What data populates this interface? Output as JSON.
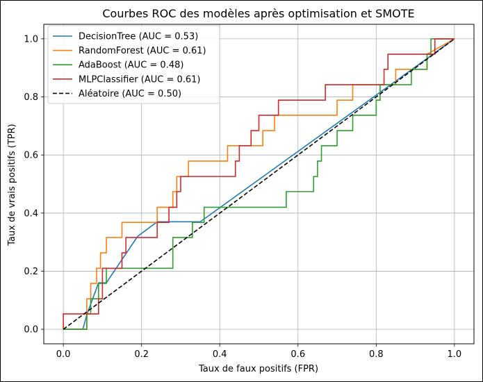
{
  "chart_data": {
    "type": "line",
    "title": "Courbes ROC des modèles après optimisation et SMOTE",
    "xlabel": "Taux de faux positifs (FPR)",
    "ylabel": "Taux de vrais positifs (TPR)",
    "xlim": [
      -0.05,
      1.05
    ],
    "ylim": [
      -0.05,
      1.05
    ],
    "xticks": [
      "0.0",
      "0.2",
      "0.4",
      "0.6",
      "0.8",
      "1.0"
    ],
    "yticks": [
      "0.0",
      "0.2",
      "0.4",
      "0.6",
      "0.8",
      "1.0"
    ],
    "grid": true,
    "legend_position": "top-left",
    "series": [
      {
        "name": "DecisionTree (AUC = 0.53)",
        "color": "#1f77b4",
        "dash": "solid",
        "x": [
          0.0,
          0.05,
          0.06,
          0.09,
          0.11,
          0.19,
          0.24,
          0.35,
          1.0
        ],
        "y": [
          0.0,
          0.0,
          0.05,
          0.16,
          0.16,
          0.32,
          0.37,
          0.37,
          1.0
        ]
      },
      {
        "name": "RandomForest (AUC = 0.61)",
        "color": "#ff7f0e",
        "dash": "solid",
        "x": [
          0.0,
          0.06,
          0.06,
          0.07,
          0.07,
          0.085,
          0.085,
          0.095,
          0.095,
          0.11,
          0.11,
          0.15,
          0.15,
          0.24,
          0.24,
          0.28,
          0.28,
          0.29,
          0.29,
          0.32,
          0.32,
          0.42,
          0.42,
          0.51,
          0.51,
          0.54,
          0.54,
          0.7,
          0.7,
          0.74,
          0.74,
          0.85,
          0.85,
          0.93,
          0.93,
          1.0
        ],
        "y": [
          0.0,
          0.0,
          0.105,
          0.105,
          0.158,
          0.158,
          0.21,
          0.21,
          0.263,
          0.263,
          0.316,
          0.316,
          0.368,
          0.368,
          0.42,
          0.42,
          0.474,
          0.474,
          0.526,
          0.526,
          0.579,
          0.579,
          0.632,
          0.632,
          0.684,
          0.684,
          0.737,
          0.737,
          0.789,
          0.789,
          0.842,
          0.842,
          0.895,
          0.895,
          0.947,
          1.0
        ]
      },
      {
        "name": "AdaBoost (AUC = 0.48)",
        "color": "#2ca02c",
        "dash": "solid",
        "x": [
          0.0,
          0.06,
          0.06,
          0.07,
          0.07,
          0.09,
          0.09,
          0.11,
          0.11,
          0.28,
          0.28,
          0.33,
          0.33,
          0.36,
          0.36,
          0.57,
          0.57,
          0.64,
          0.64,
          0.65,
          0.65,
          0.66,
          0.66,
          0.7,
          0.7,
          0.74,
          0.74,
          0.8,
          0.8,
          0.81,
          0.81,
          0.89,
          0.89,
          0.93,
          0.93,
          0.94,
          0.94,
          1.0
        ],
        "y": [
          0.0,
          0.0,
          0.053,
          0.053,
          0.105,
          0.105,
          0.158,
          0.158,
          0.21,
          0.21,
          0.316,
          0.316,
          0.368,
          0.368,
          0.42,
          0.42,
          0.474,
          0.474,
          0.526,
          0.526,
          0.579,
          0.579,
          0.632,
          0.632,
          0.684,
          0.684,
          0.737,
          0.737,
          0.789,
          0.789,
          0.842,
          0.842,
          0.895,
          0.895,
          0.947,
          0.947,
          1.0,
          1.0
        ]
      },
      {
        "name": "MLPClassifier (AUC = 0.61)",
        "color": "#d62728",
        "dash": "solid",
        "x": [
          0.0,
          0.0,
          0.09,
          0.09,
          0.1,
          0.1,
          0.15,
          0.15,
          0.16,
          0.16,
          0.24,
          0.24,
          0.27,
          0.27,
          0.29,
          0.29,
          0.3,
          0.3,
          0.44,
          0.44,
          0.45,
          0.45,
          0.48,
          0.48,
          0.5,
          0.5,
          0.55,
          0.55,
          0.67,
          0.67,
          0.82,
          0.82,
          0.83,
          0.83,
          0.92,
          0.92,
          0.95,
          0.95,
          1.0
        ],
        "y": [
          0.0,
          0.053,
          0.053,
          0.105,
          0.105,
          0.21,
          0.21,
          0.263,
          0.263,
          0.316,
          0.316,
          0.368,
          0.368,
          0.42,
          0.42,
          0.474,
          0.474,
          0.526,
          0.526,
          0.579,
          0.579,
          0.632,
          0.632,
          0.684,
          0.684,
          0.737,
          0.737,
          0.789,
          0.789,
          0.842,
          0.842,
          0.895,
          0.895,
          0.947,
          0.947,
          0.947,
          0.947,
          1.0,
          1.0
        ]
      },
      {
        "name": "Aléatoire (AUC = 0.50)",
        "color": "#000000",
        "dash": "dashed",
        "x": [
          0.0,
          1.0
        ],
        "y": [
          0.0,
          1.0
        ]
      }
    ]
  }
}
